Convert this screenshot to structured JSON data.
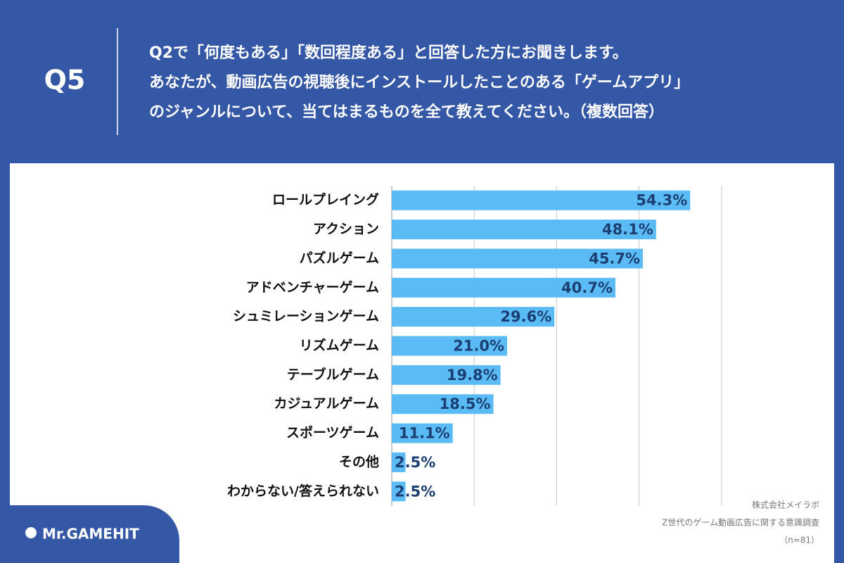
{
  "header": {
    "label": "Q5",
    "question": [
      "Q2で「何度もある」「数回程度ある」と回答した方にお聞きします。",
      "あなたが、動画広告の視聴後にインストールしたことのある「ゲームアプリ」",
      "のジャンルについて、当てはまるものを全て教えてください。（複数回答）"
    ]
  },
  "chart_data": {
    "type": "hbar",
    "categories": [
      "ロールプレイング",
      "アクション",
      "パズルゲーム",
      "アドベンチャーゲーム",
      "シュミレーションゲーム",
      "リズムゲーム",
      "テーブルゲーム",
      "カジュアルゲーム",
      "スポーツゲーム",
      "その他",
      "わからない/答えられない"
    ],
    "values": [
      54.3,
      48.1,
      45.7,
      40.7,
      29.6,
      21.0,
      19.8,
      18.5,
      11.1,
      2.5,
      2.5
    ],
    "value_labels": [
      "54.3%",
      "48.1%",
      "45.7%",
      "40.7%",
      "29.6%",
      "21.0%",
      "19.8%",
      "18.5%",
      "11.1%",
      "2.5%",
      "2.5%"
    ],
    "color": "#5bbcf5",
    "xlim": [
      0,
      75
    ],
    "xticks": [
      15,
      30,
      45,
      60
    ],
    "grid": true
  },
  "footer": {
    "source": [
      "株式会社メイラボ",
      "Z世代のゲーム動画広告に関する意識調査",
      "（n=81）"
    ],
    "logo": "Mr.GAMEHIT"
  }
}
